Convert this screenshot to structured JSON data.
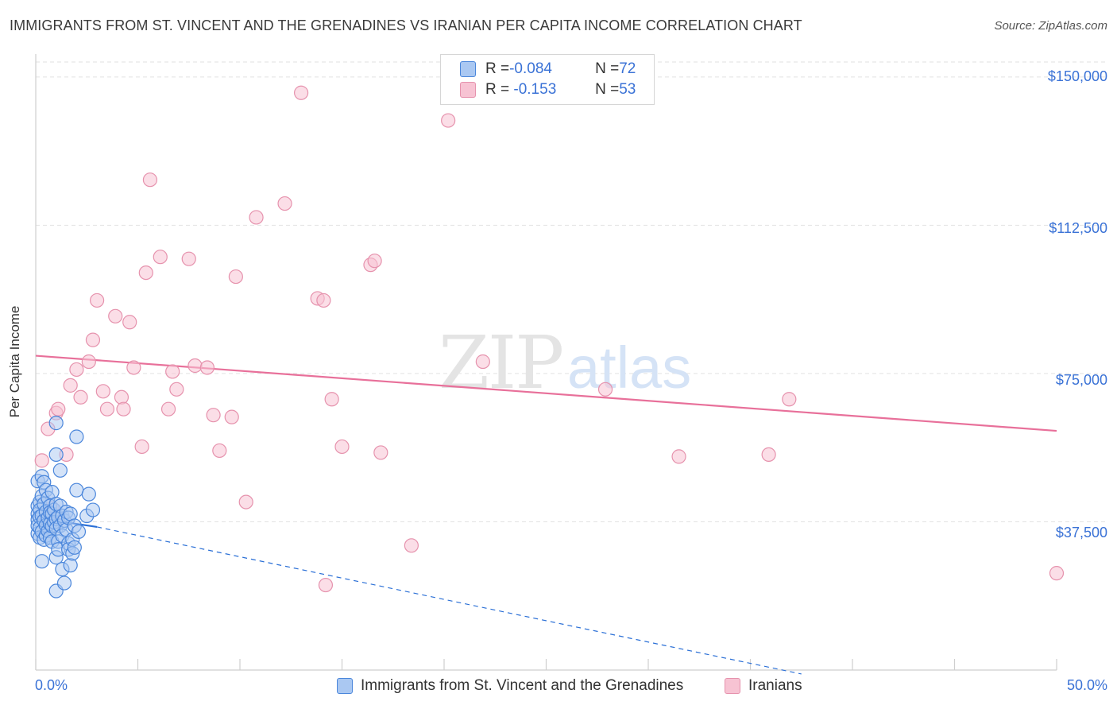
{
  "title": "IMMIGRANTS FROM ST. VINCENT AND THE GRENADINES VS IRANIAN PER CAPITA INCOME CORRELATION CHART",
  "source": "Source: ZipAtlas.com",
  "watermark": {
    "part1": "ZIP",
    "part2": "atlas"
  },
  "legend": {
    "rows": [
      {
        "r_label": "R = ",
        "r_value": "-0.084",
        "n_label": "N = ",
        "n_value": "72"
      },
      {
        "r_label": "R = ",
        "r_value": " -0.153",
        "n_label": "N = ",
        "n_value": "53"
      }
    ]
  },
  "bottom_legend": [
    "Immigrants from St. Vincent and the Grenadines",
    "Iranians"
  ],
  "colors": {
    "blue_fill": "#aac8f2",
    "blue_stroke": "#4a86db",
    "blue_line": "#2a6fd6",
    "pink_fill": "#f7c3d3",
    "pink_stroke": "#e692ad",
    "pink_line": "#e8709a",
    "axis_text": "#3a72d6",
    "grid": "#e2e2e2"
  },
  "chart_data": {
    "type": "scatter",
    "title": "IMMIGRANTS FROM ST. VINCENT AND THE GRENADINES VS IRANIAN PER CAPITA INCOME CORRELATION CHART",
    "xlabel": "",
    "ylabel": "Per Capita Income",
    "xlim": [
      0,
      50
    ],
    "ylim": [
      0,
      155000
    ],
    "x_tick_labels": [
      "0.0%",
      "50.0%"
    ],
    "y_ticks": [
      37500,
      75000,
      112500,
      150000
    ],
    "y_tick_labels": [
      "$37,500",
      "$75,000",
      "$112,500",
      "$150,000"
    ],
    "grid": true,
    "legend_position": "top-center",
    "series": [
      {
        "name": "Immigrants from St. Vincent and the Grenadines",
        "R": -0.084,
        "N": 72,
        "trend": {
          "x": [
            0,
            3
          ],
          "y": [
            38500,
            36200
          ],
          "extended_x": [
            3,
            37.5
          ],
          "extended_y": [
            36200,
            -1000
          ]
        },
        "points": [
          [
            0.1,
            41500
          ],
          [
            0.1,
            39500
          ],
          [
            0.1,
            38000
          ],
          [
            0.1,
            34500
          ],
          [
            0.1,
            47800
          ],
          [
            0.1,
            36500
          ],
          [
            0.2,
            42500
          ],
          [
            0.2,
            40500
          ],
          [
            0.2,
            38700
          ],
          [
            0.2,
            36000
          ],
          [
            0.2,
            33500
          ],
          [
            0.3,
            49000
          ],
          [
            0.3,
            44000
          ],
          [
            0.3,
            39000
          ],
          [
            0.3,
            35000
          ],
          [
            0.3,
            27500
          ],
          [
            0.4,
            47500
          ],
          [
            0.4,
            42000
          ],
          [
            0.4,
            37800
          ],
          [
            0.4,
            33000
          ],
          [
            0.5,
            45500
          ],
          [
            0.5,
            40000
          ],
          [
            0.5,
            36600
          ],
          [
            0.5,
            34000
          ],
          [
            0.6,
            43500
          ],
          [
            0.6,
            38500
          ],
          [
            0.6,
            35200
          ],
          [
            0.7,
            41500
          ],
          [
            0.7,
            39800
          ],
          [
            0.7,
            37000
          ],
          [
            0.7,
            33500
          ],
          [
            0.8,
            45000
          ],
          [
            0.8,
            39500
          ],
          [
            0.8,
            36400
          ],
          [
            0.8,
            32500
          ],
          [
            0.9,
            40500
          ],
          [
            0.9,
            37400
          ],
          [
            1.0,
            42000
          ],
          [
            1.0,
            38200
          ],
          [
            1.0,
            35800
          ],
          [
            1.0,
            28500
          ],
          [
            1.0,
            20000
          ],
          [
            1.0,
            62500
          ],
          [
            1.0,
            54500
          ],
          [
            1.1,
            38700
          ],
          [
            1.1,
            32500
          ],
          [
            1.1,
            30500
          ],
          [
            1.2,
            50500
          ],
          [
            1.2,
            41500
          ],
          [
            1.2,
            36500
          ],
          [
            1.3,
            39000
          ],
          [
            1.3,
            34000
          ],
          [
            1.3,
            25500
          ],
          [
            1.4,
            37800
          ],
          [
            1.4,
            22000
          ],
          [
            1.5,
            40000
          ],
          [
            1.5,
            35500
          ],
          [
            1.6,
            38500
          ],
          [
            1.6,
            32000
          ],
          [
            1.6,
            30500
          ],
          [
            1.7,
            39500
          ],
          [
            1.7,
            26500
          ],
          [
            1.8,
            33000
          ],
          [
            1.8,
            29500
          ],
          [
            1.9,
            36500
          ],
          [
            1.9,
            31000
          ],
          [
            2.0,
            59000
          ],
          [
            2.0,
            45500
          ],
          [
            2.1,
            35000
          ],
          [
            2.5,
            39000
          ],
          [
            2.6,
            44500
          ],
          [
            2.8,
            40500
          ]
        ]
      },
      {
        "name": "Iranians",
        "R": -0.153,
        "N": 53,
        "trend": {
          "x": [
            0,
            50
          ],
          "y": [
            79500,
            60500
          ]
        },
        "points": [
          [
            0.3,
            53000
          ],
          [
            0.6,
            61000
          ],
          [
            0.8,
            41000
          ],
          [
            1.0,
            65000
          ],
          [
            1.1,
            66000
          ],
          [
            1.5,
            54500
          ],
          [
            1.7,
            72000
          ],
          [
            2.0,
            76000
          ],
          [
            2.2,
            69000
          ],
          [
            2.6,
            78000
          ],
          [
            2.8,
            83500
          ],
          [
            3.0,
            93500
          ],
          [
            3.3,
            70500
          ],
          [
            3.5,
            66000
          ],
          [
            3.9,
            89500
          ],
          [
            4.2,
            69000
          ],
          [
            4.3,
            66000
          ],
          [
            4.6,
            88000
          ],
          [
            4.8,
            76500
          ],
          [
            5.2,
            56500
          ],
          [
            5.4,
            100500
          ],
          [
            5.6,
            124000
          ],
          [
            6.1,
            104500
          ],
          [
            6.5,
            66000
          ],
          [
            6.7,
            75500
          ],
          [
            6.9,
            71000
          ],
          [
            7.5,
            104000
          ],
          [
            7.8,
            77000
          ],
          [
            8.4,
            76500
          ],
          [
            8.7,
            64500
          ],
          [
            9.0,
            55500
          ],
          [
            9.6,
            64000
          ],
          [
            9.8,
            99500
          ],
          [
            10.3,
            42500
          ],
          [
            10.8,
            114500
          ],
          [
            12.2,
            118000
          ],
          [
            13.0,
            146000
          ],
          [
            13.8,
            94000
          ],
          [
            14.1,
            93500
          ],
          [
            14.2,
            21500
          ],
          [
            14.5,
            68500
          ],
          [
            15.0,
            56500
          ],
          [
            16.4,
            102500
          ],
          [
            16.6,
            103500
          ],
          [
            16.9,
            55000
          ],
          [
            18.4,
            31500
          ],
          [
            20.2,
            139000
          ],
          [
            21.9,
            78000
          ],
          [
            27.9,
            71000
          ],
          [
            31.5,
            54000
          ],
          [
            35.9,
            54500
          ],
          [
            36.9,
            68500
          ],
          [
            50.0,
            24500
          ]
        ]
      }
    ]
  }
}
